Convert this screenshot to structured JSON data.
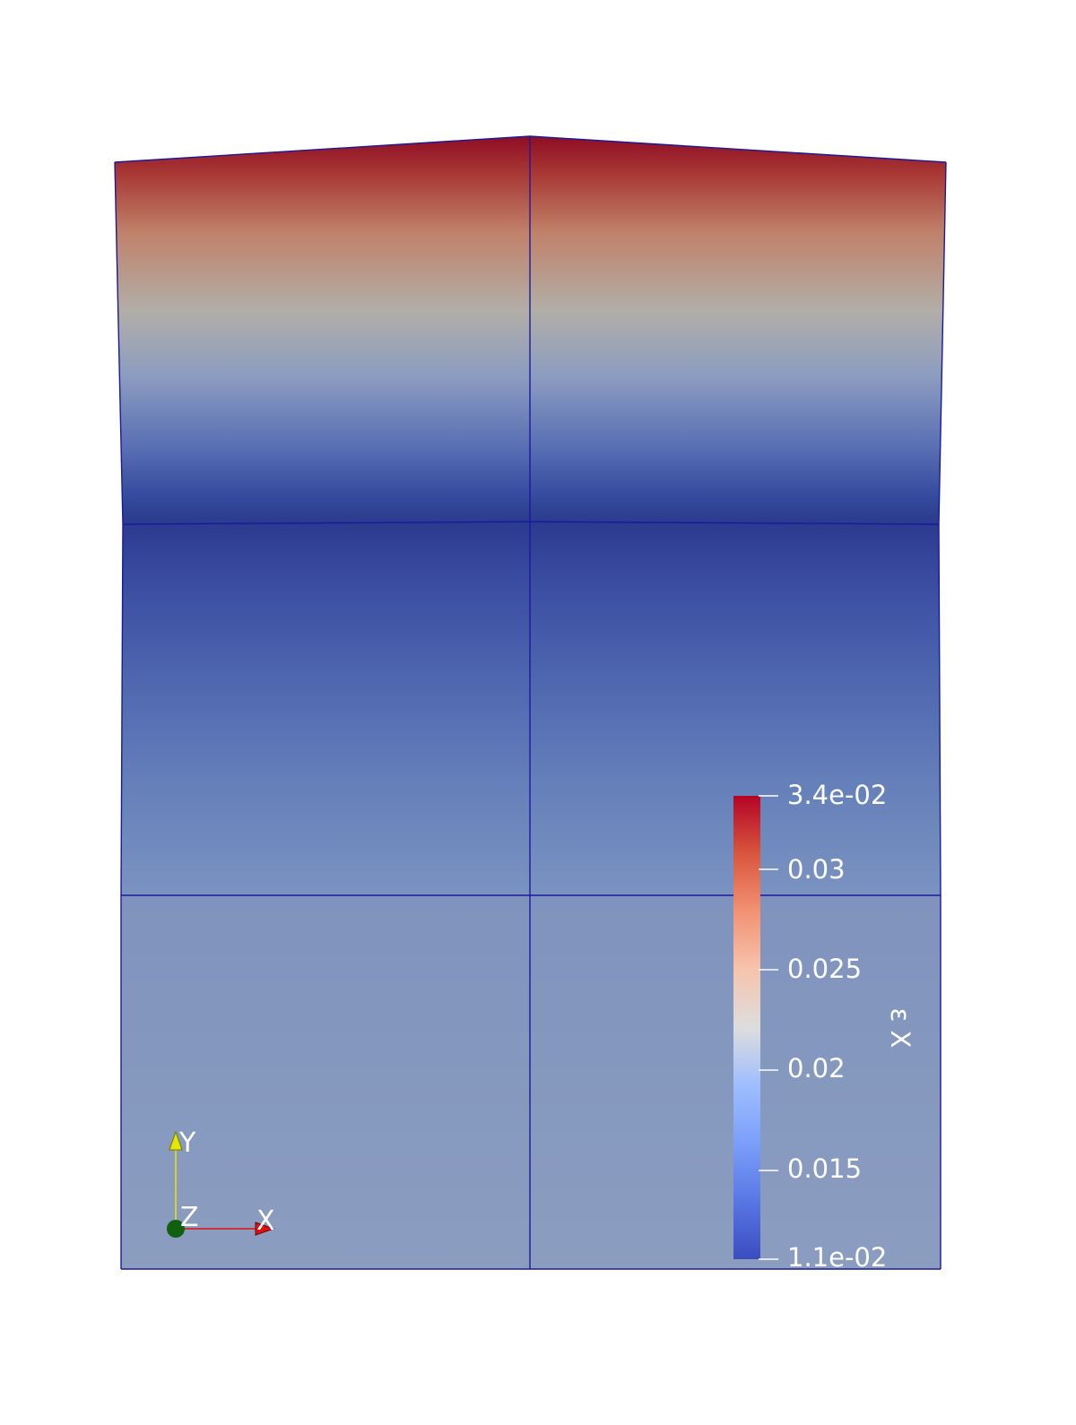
{
  "scalar_bar": {
    "title": "ε X",
    "range": [
      0.011,
      0.034
    ],
    "colors": {
      "low": "#3b4cc0",
      "mid": "#dddddd",
      "high": "#b40426"
    },
    "tick_labels": [
      "3.4e-02",
      "0.03",
      "0.025",
      "0.02",
      "0.015",
      "1.1e-02"
    ]
  },
  "orientation_axes": {
    "x_label": "X",
    "y_label": "Y",
    "z_label": "Z",
    "colors": {
      "x": "#e01010",
      "y": "#e6e600",
      "z": "#106010"
    }
  },
  "mesh": {
    "edge_color": "#1a1a9c"
  }
}
